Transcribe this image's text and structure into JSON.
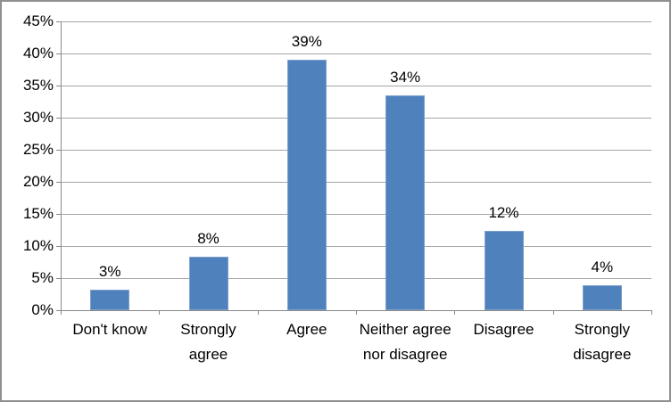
{
  "chart_data": {
    "type": "bar",
    "title": "",
    "xlabel": "",
    "ylabel": "",
    "categories": [
      "Don't know",
      "Strongly agree",
      "Agree",
      "Neither agree nor disagree",
      "Disagree",
      "Strongly disagree"
    ],
    "values": [
      3,
      8,
      39,
      34,
      12,
      4
    ],
    "data_labels": [
      "3%",
      "8%",
      "39%",
      "34%",
      "12%",
      "4%"
    ],
    "bar_heights_pct": [
      3.2,
      8.3,
      39,
      33.5,
      12.4,
      3.9
    ],
    "ylim": [
      0,
      45
    ],
    "ytick_step": 5,
    "ytick_labels": [
      "0%",
      "5%",
      "10%",
      "15%",
      "20%",
      "25%",
      "30%",
      "35%",
      "40%",
      "45%"
    ],
    "grid": true,
    "legend": "none",
    "colors": {
      "bar": "#4F81BD",
      "bar_edge": "#7FA1CC",
      "gridline": "#A6A6A6",
      "axis": "#898989",
      "text": "#000000",
      "frame_border": "#909090",
      "background": "#FFFFFF"
    }
  }
}
